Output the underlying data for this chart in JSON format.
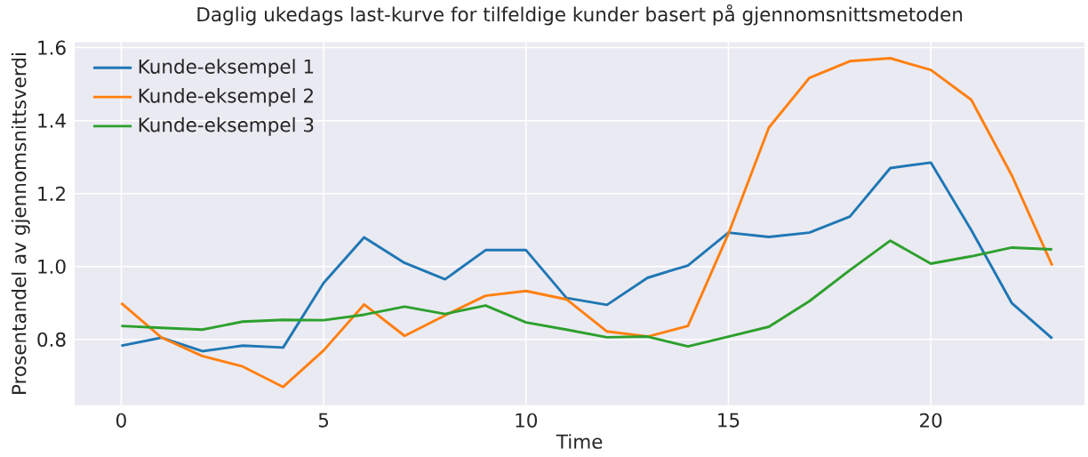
{
  "chart_data": {
    "type": "line",
    "title": "Daglig ukedags last-kurve for tilfeldige kunder basert på gjennomsnittsmetoden",
    "xlabel": "Time",
    "ylabel": "Prosentandel av gjennomsnittsverdi",
    "x": [
      0,
      1,
      2,
      3,
      4,
      5,
      6,
      7,
      8,
      9,
      10,
      11,
      12,
      13,
      14,
      15,
      16,
      17,
      18,
      19,
      20,
      21,
      22,
      23
    ],
    "series": [
      {
        "name": "Kunde-eksempel 1",
        "color": "#1f77b4",
        "values": [
          0.783,
          0.805,
          0.768,
          0.783,
          0.778,
          0.955,
          1.08,
          1.01,
          0.965,
          1.045,
          1.045,
          0.914,
          0.895,
          0.969,
          1.003,
          1.093,
          1.081,
          1.093,
          1.137,
          1.27,
          1.285,
          1.1,
          0.9,
          0.803
        ]
      },
      {
        "name": "Kunde-eksempel 2",
        "color": "#ff7f0e",
        "values": [
          0.9,
          0.805,
          0.755,
          0.726,
          0.67,
          0.77,
          0.896,
          0.81,
          0.866,
          0.92,
          0.933,
          0.91,
          0.822,
          0.808,
          0.837,
          1.09,
          1.381,
          1.517,
          1.563,
          1.571,
          1.539,
          1.457,
          1.25,
          1.003
        ]
      },
      {
        "name": "Kunde-eksempel 3",
        "color": "#2ca02c",
        "values": [
          0.837,
          0.832,
          0.827,
          0.849,
          0.854,
          0.853,
          0.868,
          0.89,
          0.87,
          0.893,
          0.847,
          0.827,
          0.806,
          0.808,
          0.781,
          0.808,
          0.835,
          0.905,
          0.99,
          1.071,
          1.008,
          1.028,
          1.052,
          1.047
        ]
      }
    ],
    "xlim": [
      -1.15,
      23.8
    ],
    "ylim": [
      0.62,
      1.615
    ],
    "xticks": [
      0,
      5,
      10,
      15,
      20
    ],
    "yticks": [
      {
        "value": 0.8,
        "label": "0.8"
      },
      {
        "value": 1.0,
        "label": "1.0"
      },
      {
        "value": 1.2,
        "label": "1.2"
      },
      {
        "value": 1.4,
        "label": "1.4"
      },
      {
        "value": 1.6,
        "label": "1.6"
      }
    ],
    "grid": true,
    "legend": "top left",
    "marker": "none",
    "line_style": "solid"
  }
}
